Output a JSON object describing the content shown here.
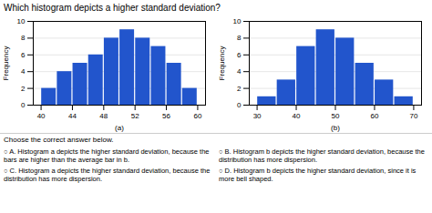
{
  "title": "Which histogram depicts a higher standard deviation?",
  "annotations": [
    "Choose the correct answer below.",
    "○ A. Histogram a depicts the higher standard deviation, because the bars are higher than the average bar in b.",
    "○ B. Histogram b depicts the higher standard deviation, because the distribution has more dispersion.",
    "○ C. Histogram a depicts the higher standard deviation, because the distribution has more dispersion.",
    "○ D. Histogram b depicts the higher standard deviation, since it is more bell shaped."
  ],
  "chart_data": [
    {
      "type": "histogram",
      "xlabel": "(a)",
      "ylabel": "Frequency",
      "bins": [
        40,
        42,
        44,
        46,
        48,
        50,
        52,
        54,
        56,
        58,
        60
      ],
      "values": [
        2,
        4,
        5,
        6,
        8,
        9,
        8,
        7,
        5,
        2
      ],
      "color": "#2255cc",
      "xlim": [
        39,
        61
      ],
      "xticks": [
        40,
        44,
        48,
        52,
        56,
        60
      ],
      "ylim": [
        0,
        10
      ],
      "yticks": [
        0,
        2,
        4,
        6,
        8,
        10
      ],
      "grid": true
    },
    {
      "type": "histogram",
      "xlabel": "(b)",
      "ylabel": "Frequency",
      "bins": [
        30,
        35,
        40,
        45,
        50,
        55,
        60,
        65,
        70
      ],
      "values": [
        1,
        3,
        7,
        9,
        8,
        5,
        3,
        1
      ],
      "color": "#2255cc",
      "xlim": [
        28,
        72
      ],
      "xticks": [
        30,
        40,
        50,
        60,
        70
      ],
      "ylim": [
        0,
        10
      ],
      "yticks": [
        0,
        2,
        4,
        6,
        8,
        10
      ],
      "grid": true
    }
  ]
}
